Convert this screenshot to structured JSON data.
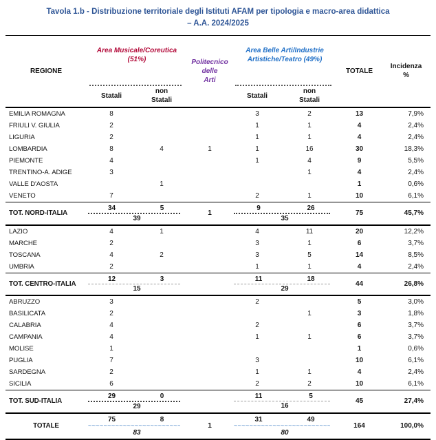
{
  "title": {
    "line1": "Tavola 1.b - Distribuzione territoriale degli Istituti AFAM per tipologia e macro-area didattica",
    "line2": "– A.A. 2024/2025"
  },
  "colors": {
    "title": "#2E5596",
    "music": "#B20838",
    "politecnico": "#7030A0",
    "belle": "#1F6FC7",
    "wave": "#7BA7D7",
    "text": "#151515",
    "rule": "#000000"
  },
  "header": {
    "regione": "REGIONE",
    "music_title": "Area Musicale/Coreutica\n(51%)",
    "politecnico": "Politecnico\ndelle\nArti",
    "belle_title": "Area Belle Arti/Industrie\nArtistiche/Teatro (49%)",
    "statali": "Statali",
    "non_statali": "non\nStatali",
    "totale": "TOTALE",
    "incidenza": "Incidenza\n%"
  },
  "table": {
    "sections": [
      {
        "rows": [
          {
            "name": "EMILIA ROMAGNA",
            "mus_s": "8",
            "mus_ns": "",
            "poli": "",
            "belle_s": "3",
            "belle_ns": "2",
            "tot": "13",
            "inc": "7,9%"
          },
          {
            "name": "FRIULI V. GIULIA",
            "mus_s": "2",
            "mus_ns": "",
            "poli": "",
            "belle_s": "1",
            "belle_ns": "1",
            "tot": "4",
            "inc": "2,4%"
          },
          {
            "name": "LIGURIA",
            "mus_s": "2",
            "mus_ns": "",
            "poli": "",
            "belle_s": "1",
            "belle_ns": "1",
            "tot": "4",
            "inc": "2,4%"
          },
          {
            "name": "LOMBARDIA",
            "mus_s": "8",
            "mus_ns": "4",
            "poli": "1",
            "belle_s": "1",
            "belle_ns": "16",
            "tot": "30",
            "inc": "18,3%"
          },
          {
            "name": "PIEMONTE",
            "mus_s": "4",
            "mus_ns": "",
            "poli": "",
            "belle_s": "1",
            "belle_ns": "4",
            "tot": "9",
            "inc": "5,5%"
          },
          {
            "name": "TRENTINO-A. ADIGE",
            "mus_s": "3",
            "mus_ns": "",
            "poli": "",
            "belle_s": "",
            "belle_ns": "1",
            "tot": "4",
            "inc": "2,4%"
          },
          {
            "name": "VALLE D'AOSTA",
            "mus_s": "",
            "mus_ns": "1",
            "poli": "",
            "belle_s": "",
            "belle_ns": "",
            "tot": "1",
            "inc": "0,6%"
          },
          {
            "name": "VENETO",
            "mus_s": "7",
            "mus_ns": "",
            "poli": "",
            "belle_s": "2",
            "belle_ns": "1",
            "tot": "10",
            "inc": "6,1%"
          }
        ],
        "subtotal": {
          "name": "TOT. NORD-ITALIA",
          "mus_s": "34",
          "mus_ns": "5",
          "mus_sum": "39",
          "poli": "1",
          "belle_s": "9",
          "belle_ns": "26",
          "belle_sum": "35",
          "tot": "75",
          "inc": "45,7%",
          "sep_mus": "dark",
          "sep_belle": "dark",
          "grand": false
        }
      },
      {
        "rows": [
          {
            "name": "LAZIO",
            "mus_s": "4",
            "mus_ns": "1",
            "poli": "",
            "belle_s": "4",
            "belle_ns": "11",
            "tot": "20",
            "inc": "12,2%"
          },
          {
            "name": "MARCHE",
            "mus_s": "2",
            "mus_ns": "",
            "poli": "",
            "belle_s": "3",
            "belle_ns": "1",
            "tot": "6",
            "inc": "3,7%"
          },
          {
            "name": "TOSCANA",
            "mus_s": "4",
            "mus_ns": "2",
            "poli": "",
            "belle_s": "3",
            "belle_ns": "5",
            "tot": "14",
            "inc": "8,5%"
          },
          {
            "name": "UMBRIA",
            "mus_s": "2",
            "mus_ns": "",
            "poli": "",
            "belle_s": "1",
            "belle_ns": "1",
            "tot": "4",
            "inc": "2,4%"
          }
        ],
        "subtotal": {
          "name": "TOT. CENTRO-ITALIA",
          "mus_s": "12",
          "mus_ns": "3",
          "mus_sum": "15",
          "poli": "",
          "belle_s": "11",
          "belle_ns": "18",
          "belle_sum": "29",
          "tot": "44",
          "inc": "26,8%",
          "sep_mus": "gray",
          "sep_belle": "gray",
          "grand": false
        }
      },
      {
        "rows": [
          {
            "name": "ABRUZZO",
            "mus_s": "3",
            "mus_ns": "",
            "poli": "",
            "belle_s": "2",
            "belle_ns": "",
            "tot": "5",
            "inc": "3,0%"
          },
          {
            "name": "BASILICATA",
            "mus_s": "2",
            "mus_ns": "",
            "poli": "",
            "belle_s": "",
            "belle_ns": "1",
            "tot": "3",
            "inc": "1,8%"
          },
          {
            "name": "CALABRIA",
            "mus_s": "4",
            "mus_ns": "",
            "poli": "",
            "belle_s": "2",
            "belle_ns": "",
            "tot": "6",
            "inc": "3,7%"
          },
          {
            "name": "CAMPANIA",
            "mus_s": "4",
            "mus_ns": "",
            "poli": "",
            "belle_s": "1",
            "belle_ns": "1",
            "tot": "6",
            "inc": "3,7%"
          },
          {
            "name": "MOLISE",
            "mus_s": "1",
            "mus_ns": "",
            "poli": "",
            "belle_s": "",
            "belle_ns": "",
            "tot": "1",
            "inc": "0,6%"
          },
          {
            "name": "PUGLIA",
            "mus_s": "7",
            "mus_ns": "",
            "poli": "",
            "belle_s": "3",
            "belle_ns": "",
            "tot": "10",
            "inc": "6,1%"
          },
          {
            "name": "SARDEGNA",
            "mus_s": "2",
            "mus_ns": "",
            "poli": "",
            "belle_s": "1",
            "belle_ns": "1",
            "tot": "4",
            "inc": "2,4%"
          },
          {
            "name": "SICILIA",
            "mus_s": "6",
            "mus_ns": "",
            "poli": "",
            "belle_s": "2",
            "belle_ns": "2",
            "tot": "10",
            "inc": "6,1%"
          }
        ],
        "subtotal": {
          "name": "TOT. SUD-ITALIA",
          "mus_s": "29",
          "mus_ns": "0",
          "mus_sum": "29",
          "poli": "",
          "belle_s": "11",
          "belle_ns": "5",
          "belle_sum": "16",
          "tot": "45",
          "inc": "27,4%",
          "sep_mus": "dark",
          "sep_belle": "gray",
          "grand": false
        }
      },
      {
        "rows": [],
        "subtotal": {
          "name": "TOTALE",
          "mus_s": "75",
          "mus_ns": "8",
          "mus_sum": "83",
          "poli": "1",
          "belle_s": "31",
          "belle_ns": "49",
          "belle_sum": "80",
          "tot": "164",
          "inc": "100,0%",
          "sep_mus": "wavy",
          "sep_belle": "wavy",
          "grand": true
        }
      }
    ]
  }
}
